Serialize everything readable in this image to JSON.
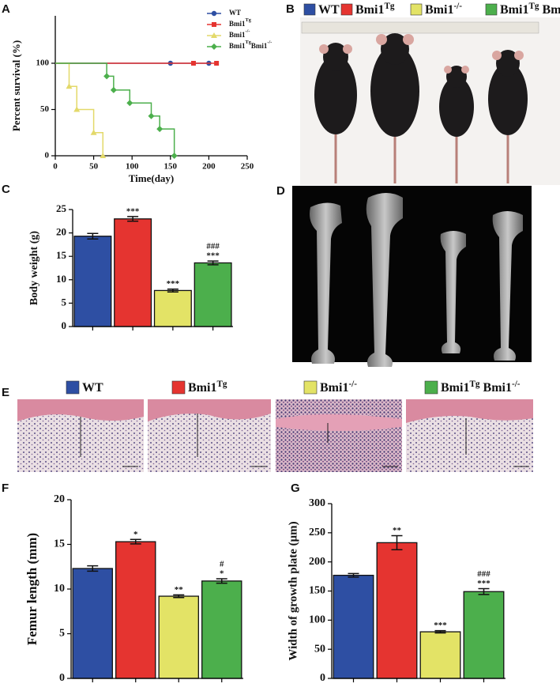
{
  "figure": {
    "letters": [
      "A",
      "B",
      "C",
      "D",
      "E",
      "F",
      "G"
    ],
    "legend": [
      {
        "color": "#2e4fa3",
        "label": [
          {
            "text": "WT"
          }
        ]
      },
      {
        "color": "#e53430",
        "label": [
          {
            "text": "Bmi1"
          },
          {
            "text": "Tg",
            "sup": true
          }
        ]
      },
      {
        "color": "#e3e366",
        "label": [
          {
            "text": "Bmi1"
          },
          {
            "text": "-/-",
            "sup": true
          }
        ]
      },
      {
        "color": "#4caf4c",
        "label": [
          {
            "text": "Bmi1"
          },
          {
            "text": "Tg",
            "sup": true
          },
          {
            "text": " Bmi1"
          },
          {
            "text": "-/-",
            "sup": true
          }
        ]
      }
    ]
  },
  "chart_data": [
    {
      "type": "survival",
      "x_label": "Time(day)",
      "y_label": "Percent survival (%)",
      "xlim": [
        0,
        250
      ],
      "xticks": [
        0,
        50,
        100,
        150,
        200,
        250
      ],
      "ylim": [
        0,
        100
      ],
      "yticks": [
        0,
        50,
        100
      ],
      "series": [
        {
          "name": [
            {
              "text": "WT"
            }
          ],
          "color": "#2e4fa3",
          "marker": "circle",
          "x": [
            0,
            150,
            200
          ],
          "values": [
            100,
            100,
            100
          ]
        },
        {
          "name": [
            {
              "text": "Bmi1"
            },
            {
              "text": "Tg",
              "sup": true
            }
          ],
          "color": "#e53430",
          "marker": "square",
          "x": [
            0,
            180,
            210
          ],
          "values": [
            100,
            100,
            100
          ]
        },
        {
          "name": [
            {
              "text": "Bmi1"
            },
            {
              "text": "-/-",
              "sup": true
            }
          ],
          "color": "#e3d96a",
          "marker": "triangle",
          "x": [
            0,
            18,
            28,
            50,
            62
          ],
          "values": [
            100,
            75,
            50,
            25,
            0
          ]
        },
        {
          "name": [
            {
              "text": "Bmi1"
            },
            {
              "text": "Tg",
              "sup": true
            },
            {
              "text": "Bmi1"
            },
            {
              "text": "-/-",
              "sup": true
            }
          ],
          "color": "#4caf4c",
          "marker": "diamond",
          "x": [
            0,
            67,
            76,
            97,
            125,
            136,
            155
          ],
          "values": [
            100,
            86,
            71,
            57,
            43,
            29,
            0
          ]
        }
      ]
    },
    {
      "type": "bar",
      "y_label": "Body weight (g)",
      "ylim": [
        0,
        25
      ],
      "yticks": [
        0,
        5,
        10,
        15,
        20,
        25
      ],
      "categories": [
        null,
        null,
        null,
        null
      ],
      "colors": [
        "#2e4fa3",
        "#e53430",
        "#e3e366",
        "#4caf4c"
      ],
      "values": [
        19.3,
        23.0,
        7.7,
        13.6
      ],
      "errors": [
        0.6,
        0.5,
        0.3,
        0.4
      ],
      "annotations": [
        [],
        [
          "***"
        ],
        [
          "***"
        ],
        [
          "###",
          "***"
        ]
      ]
    },
    {
      "type": "bar",
      "y_label": "Femur length (mm)",
      "ylim": [
        0,
        20
      ],
      "yticks": [
        0,
        5,
        10,
        15,
        20
      ],
      "categories": [
        null,
        null,
        null,
        null
      ],
      "colors": [
        "#2e4fa3",
        "#e53430",
        "#e3e366",
        "#4caf4c"
      ],
      "values": [
        12.3,
        15.3,
        9.2,
        10.9
      ],
      "errors": [
        0.3,
        0.25,
        0.15,
        0.25
      ],
      "annotations": [
        [],
        [
          "*"
        ],
        [
          "**"
        ],
        [
          "#",
          "*"
        ]
      ]
    },
    {
      "type": "bar",
      "y_label": "Width of growth plate (μm)",
      "ylim": [
        0,
        300
      ],
      "yticks": [
        0,
        50,
        100,
        150,
        200,
        250,
        300
      ],
      "categories": [
        null,
        null,
        null,
        null
      ],
      "colors": [
        "#2e4fa3",
        "#e53430",
        "#e3e366",
        "#4caf4c"
      ],
      "values": [
        177,
        233,
        80,
        149
      ],
      "errors": [
        3,
        12,
        2,
        5
      ],
      "annotations": [
        [],
        [
          "**"
        ],
        [
          "***"
        ],
        [
          "###",
          "***"
        ]
      ]
    }
  ]
}
